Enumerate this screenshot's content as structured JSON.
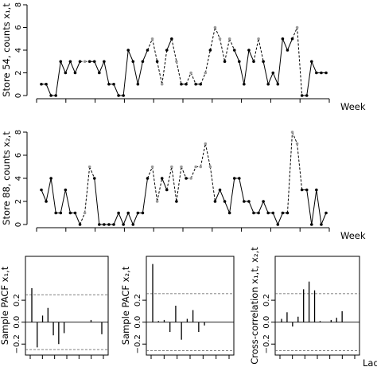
{
  "chart_data": [
    {
      "type": "line",
      "ylabel": "Store 54, counts x₁,t",
      "xlabel": "Week",
      "ylim": [
        0,
        8
      ],
      "yticks": [
        0,
        2,
        4,
        6,
        8
      ],
      "ytick_labels": [
        "0",
        "2",
        "4",
        "6",
        "8"
      ],
      "x": [
        1,
        2,
        3,
        4,
        5,
        6,
        7,
        8,
        9,
        10,
        11,
        12,
        13,
        14,
        15,
        16,
        17,
        18,
        19,
        20,
        21,
        22,
        23,
        24,
        25,
        26,
        27,
        28,
        29,
        30,
        31,
        32,
        33,
        34,
        35,
        36,
        37,
        38,
        39,
        40,
        41,
        42,
        43,
        44,
        45,
        46,
        47,
        48,
        49,
        50,
        51,
        52,
        53,
        54,
        55,
        56,
        57,
        58,
        59,
        60,
        61,
        62,
        63,
        64
      ],
      "values": [
        1,
        1,
        0,
        0,
        3,
        2,
        3,
        2,
        3,
        3,
        3,
        3,
        2,
        3,
        1,
        1,
        0,
        0,
        4,
        3,
        1,
        3,
        4,
        5,
        3,
        1,
        4,
        5,
        3,
        1,
        1,
        2,
        1,
        1,
        2,
        4,
        6,
        5,
        3,
        5,
        4,
        3,
        1,
        4,
        3,
        5,
        3,
        1,
        2,
        1,
        5,
        4,
        5,
        6,
        0,
        0,
        3,
        2,
        2,
        2,
        null,
        null,
        null,
        null
      ],
      "point_colors": [
        "black",
        "black",
        "black",
        "black",
        "black",
        "black",
        "black",
        "black",
        "black",
        "grey",
        "black",
        "black",
        "black",
        "black",
        "black",
        "black",
        "black",
        "black",
        "black",
        "black",
        "black",
        "black",
        "black",
        "grey",
        "black",
        "grey",
        "black",
        "black",
        "grey",
        "black",
        "black",
        "grey",
        "black",
        "black",
        "grey",
        "black",
        "grey",
        "grey",
        "black",
        "grey",
        "black",
        "black",
        "black",
        "black",
        "black",
        "grey",
        "black",
        "black",
        "black",
        "black",
        "black",
        "black",
        "black",
        "grey",
        "black",
        "black",
        "black",
        "black",
        "black",
        "black",
        null,
        null,
        null,
        null
      ],
      "segment_style": "solid with dashed segments where grey points occur",
      "grid": false
    },
    {
      "type": "line",
      "ylabel": "Store 88, counts x₂,t",
      "xlabel": "Week",
      "ylim": [
        0,
        8
      ],
      "yticks": [
        0,
        2,
        4,
        6,
        8
      ],
      "ytick_labels": [
        "0",
        "2",
        "4",
        "6",
        "8"
      ],
      "x": [
        1,
        2,
        3,
        4,
        5,
        6,
        7,
        8,
        9,
        10,
        11,
        12,
        13,
        14,
        15,
        16,
        17,
        18,
        19,
        20,
        21,
        22,
        23,
        24,
        25,
        26,
        27,
        28,
        29,
        30,
        31,
        32,
        33,
        34,
        35,
        36,
        37,
        38,
        39,
        40,
        41,
        42,
        43,
        44,
        45,
        46,
        47,
        48,
        49,
        50,
        51,
        52,
        53,
        54,
        55,
        56,
        57,
        58,
        59,
        60
      ],
      "values": [
        3,
        2,
        4,
        1,
        1,
        3,
        1,
        1,
        0,
        1,
        5,
        4,
        0,
        0,
        0,
        0,
        1,
        0,
        1,
        0,
        1,
        1,
        4,
        5,
        2,
        4,
        3,
        5,
        2,
        5,
        4,
        4,
        5,
        5,
        7,
        5,
        2,
        3,
        2,
        1,
        4,
        4,
        2,
        2,
        1,
        1,
        2,
        1,
        1,
        0,
        1,
        1,
        8,
        7,
        3,
        3,
        0,
        3,
        0,
        1
      ],
      "point_colors": [
        "black",
        "black",
        "black",
        "black",
        "black",
        "black",
        "black",
        "black",
        "black",
        "grey",
        "grey",
        "black",
        "black",
        "black",
        "black",
        "black",
        "black",
        "black",
        "black",
        "black",
        "black",
        "black",
        "black",
        "grey",
        "grey",
        "black",
        "black",
        "grey",
        "black",
        "grey",
        "black",
        "grey",
        "grey",
        "grey",
        "grey",
        "grey",
        "black",
        "black",
        "black",
        "black",
        "black",
        "black",
        "black",
        "black",
        "black",
        "black",
        "black",
        "black",
        "black",
        "black",
        "black",
        "black",
        "grey",
        "grey",
        "black",
        "black",
        "black",
        "black",
        "black",
        "black"
      ],
      "grid": false
    },
    {
      "type": "bar",
      "ylabel": "Sample PACF x₁,t",
      "ylim": [
        -0.3,
        0.6
      ],
      "yticks": [
        -0.2,
        0.0,
        0.2
      ],
      "ytick_labels": [
        "−0.2",
        "0.0",
        "0.2"
      ],
      "lags": [
        1,
        2,
        3,
        4,
        5,
        6,
        7,
        8,
        9,
        10,
        11,
        12,
        13,
        14
      ],
      "values": [
        0.31,
        -0.23,
        0.06,
        0.13,
        -0.12,
        -0.2,
        -0.1,
        0.0,
        0.0,
        0.0,
        0.0,
        0.02,
        0.0,
        -0.11
      ],
      "ci": [
        0.25,
        -0.25
      ]
    },
    {
      "type": "bar",
      "ylabel": "Sample PACF x₂,t",
      "ylim": [
        -0.3,
        0.6
      ],
      "yticks": [
        -0.2,
        0.0,
        0.2
      ],
      "ytick_labels": [
        "−0.2",
        "0.0",
        "0.2"
      ],
      "lags": [
        1,
        2,
        3,
        4,
        5,
        6,
        7,
        8,
        9,
        10,
        11,
        12,
        13,
        14
      ],
      "values": [
        0.53,
        0.01,
        0.02,
        -0.09,
        0.15,
        -0.16,
        0.03,
        0.11,
        -0.09,
        -0.03,
        0.0,
        0.0,
        0.0,
        0.0
      ],
      "ci": [
        0.26,
        -0.26
      ]
    },
    {
      "type": "bar",
      "ylabel": "Cross-correlation x₁,t, x₂,t",
      "xlabel": "Lag",
      "ylim": [
        -0.3,
        0.6
      ],
      "yticks": [
        -0.2,
        0.0,
        0.2
      ],
      "ytick_labels": [
        "−0.2",
        "0.0",
        "0.2"
      ],
      "lags": [
        1,
        2,
        3,
        4,
        5,
        6,
        7,
        8,
        9,
        10,
        11,
        12,
        13,
        14
      ],
      "values": [
        0.03,
        0.09,
        -0.04,
        0.05,
        0.3,
        0.37,
        0.29,
        0.01,
        0.0,
        0.02,
        0.04,
        0.1,
        0.0,
        0.0
      ],
      "ci": [
        0.26,
        -0.26
      ]
    }
  ]
}
